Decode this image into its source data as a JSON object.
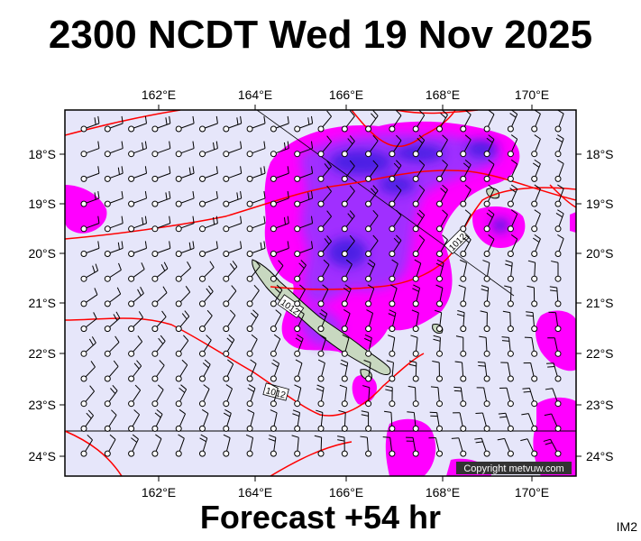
{
  "header": {
    "title": "2300 NCDT Wed 19 Nov 2025"
  },
  "footer": {
    "forecast": "Forecast +54 hr",
    "tag": "IM2"
  },
  "map": {
    "lon_labels": [
      "162°E",
      "164°E",
      "166°E",
      "168°E",
      "170°E"
    ],
    "lat_labels": [
      "18°S",
      "19°S",
      "20°S",
      "21°S",
      "22°S",
      "23°S",
      "24°S"
    ],
    "copyright": "Copyright metvuw.com",
    "isobar_labels": [
      "1012",
      "1012",
      "1012"
    ],
    "colors": {
      "background": "#e6e6fa",
      "rain_magenta": "#ff00ff",
      "rain_purple": "#9b30ff",
      "rain_blue": "#3c1fe0",
      "isobar": "#ff0000",
      "land": "#c8d8c0"
    }
  }
}
